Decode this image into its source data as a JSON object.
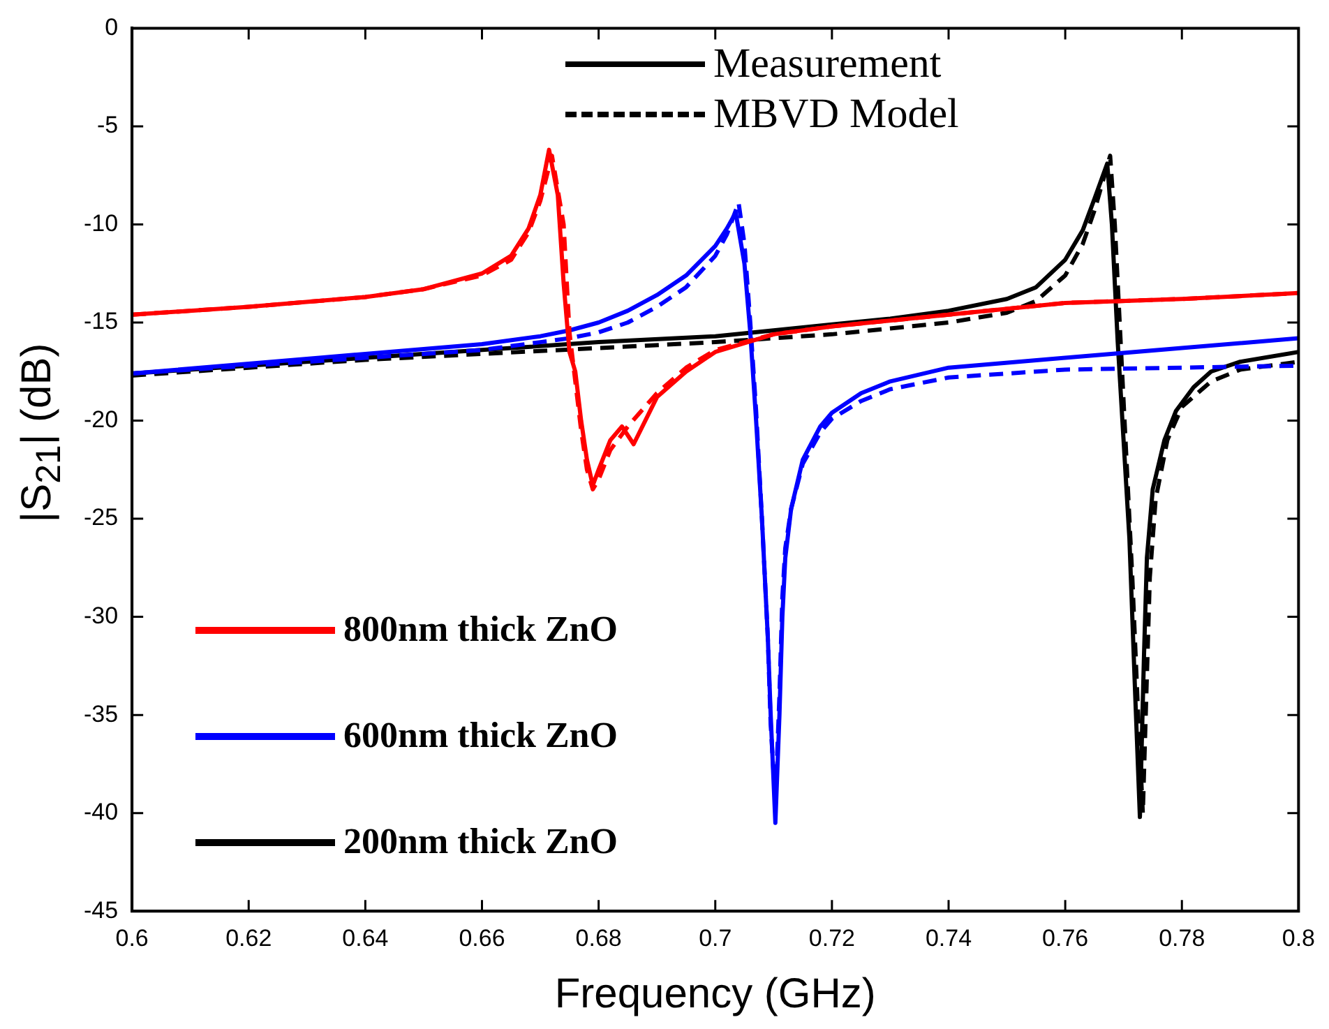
{
  "chart_data": {
    "type": "line",
    "xlabel": "Frequency (GHz)",
    "ylabel": "|S$_{21}$| (dB)",
    "xlim": [
      0.6,
      0.8
    ],
    "xticks": [
      0.6,
      0.62,
      0.64,
      0.66,
      0.68,
      0.7,
      0.72,
      0.74,
      0.76,
      0.78,
      0.8
    ],
    "ylim": [
      -45,
      0
    ],
    "yticks": [
      -45,
      -40,
      -35,
      -30,
      -25,
      -20,
      -15,
      -10,
      -5,
      0
    ],
    "grid": false,
    "legend": "bottom left",
    "marker": "none",
    "annotations": [
      "Measurement",
      "MBVD Model"
    ],
    "series": [
      {
        "name": "800nm thick ZnO",
        "color": "#ff0000",
        "line_style": "solid",
        "x": [
          0.6,
          0.62,
          0.64,
          0.65,
          0.66,
          0.665,
          0.668,
          0.67,
          0.6715,
          0.673,
          0.674,
          0.675,
          0.676,
          0.677,
          0.678,
          0.679,
          0.68,
          0.682,
          0.684,
          0.686,
          0.69,
          0.695,
          0.7,
          0.71,
          0.72,
          0.74,
          0.76,
          0.78,
          0.8
        ],
        "values": [
          -14.6,
          -14.2,
          -13.7,
          -13.3,
          -12.5,
          -11.6,
          -10.2,
          -8.5,
          -6.2,
          -8.5,
          -13,
          -16.5,
          -17.5,
          -20,
          -22,
          -23.3,
          -22.5,
          -21,
          -20.3,
          -21.2,
          -18.8,
          -17.5,
          -16.5,
          -15.6,
          -15.2,
          -14.6,
          -14,
          -13.8,
          -13.5
        ]
      },
      {
        "color": "#ff0000",
        "line_style": "dashed",
        "x": [
          0.6,
          0.62,
          0.64,
          0.65,
          0.66,
          0.665,
          0.668,
          0.67,
          0.672,
          0.674,
          0.675,
          0.676,
          0.677,
          0.678,
          0.679,
          0.68,
          0.682,
          0.685,
          0.69,
          0.695,
          0.7,
          0.71,
          0.72,
          0.74,
          0.76,
          0.78,
          0.8
        ],
        "values": [
          -14.6,
          -14.2,
          -13.7,
          -13.3,
          -12.6,
          -11.8,
          -10.4,
          -8.8,
          -6.5,
          -10,
          -15.5,
          -18,
          -20.5,
          -22.5,
          -23.5,
          -23,
          -21.5,
          -20.3,
          -18.6,
          -17.3,
          -16.4,
          -15.6,
          -15.2,
          -14.6,
          -14,
          -13.8,
          -13.5
        ]
      },
      {
        "name": "600nm thick ZnO",
        "color": "#0000ff",
        "line_style": "solid",
        "x": [
          0.6,
          0.62,
          0.64,
          0.66,
          0.67,
          0.675,
          0.68,
          0.685,
          0.69,
          0.695,
          0.7,
          0.702,
          0.7035,
          0.705,
          0.706,
          0.707,
          0.708,
          0.709,
          0.7095,
          0.7103,
          0.711,
          0.7115,
          0.712,
          0.713,
          0.715,
          0.718,
          0.72,
          0.725,
          0.73,
          0.74,
          0.76,
          0.78,
          0.8
        ],
        "values": [
          -17.6,
          -17.1,
          -16.6,
          -16.1,
          -15.7,
          -15.4,
          -15,
          -14.4,
          -13.6,
          -12.6,
          -11.1,
          -10.2,
          -9.4,
          -12,
          -15.5,
          -20,
          -25,
          -31,
          -35,
          -40.5,
          -35,
          -30,
          -27,
          -24.5,
          -22,
          -20.3,
          -19.6,
          -18.6,
          -18,
          -17.3,
          -16.8,
          -16.3,
          -15.8
        ]
      },
      {
        "color": "#0000ff",
        "line_style": "dashed",
        "x": [
          0.6,
          0.62,
          0.64,
          0.66,
          0.67,
          0.675,
          0.68,
          0.685,
          0.69,
          0.695,
          0.7,
          0.702,
          0.704,
          0.705,
          0.706,
          0.707,
          0.708,
          0.709,
          0.7095,
          0.7103,
          0.711,
          0.7115,
          0.712,
          0.713,
          0.715,
          0.718,
          0.72,
          0.725,
          0.73,
          0.74,
          0.76,
          0.78,
          0.8
        ],
        "values": [
          -17.6,
          -17.2,
          -16.8,
          -16.4,
          -16,
          -15.8,
          -15.5,
          -15,
          -14.2,
          -13.2,
          -11.6,
          -10.5,
          -8.9,
          -11,
          -15,
          -19.5,
          -25,
          -31,
          -35.5,
          -39.5,
          -34,
          -29,
          -26.5,
          -24.5,
          -22.2,
          -20.6,
          -19.9,
          -19,
          -18.4,
          -17.8,
          -17.4,
          -17.3,
          -17.2
        ]
      },
      {
        "name": "200nm thick ZnO",
        "color": "#000000",
        "line_style": "solid",
        "x": [
          0.6,
          0.62,
          0.64,
          0.66,
          0.68,
          0.7,
          0.71,
          0.72,
          0.73,
          0.74,
          0.75,
          0.755,
          0.76,
          0.763,
          0.765,
          0.7672,
          0.768,
          0.769,
          0.77,
          0.771,
          0.772,
          0.7728,
          0.7735,
          0.774,
          0.775,
          0.777,
          0.779,
          0.782,
          0.785,
          0.79,
          0.8
        ],
        "values": [
          -17.6,
          -17.2,
          -16.8,
          -16.4,
          -16,
          -15.7,
          -15.4,
          -15.1,
          -14.8,
          -14.4,
          -13.8,
          -13.2,
          -11.8,
          -10.3,
          -8.7,
          -6.9,
          -10,
          -16,
          -21,
          -26,
          -34,
          -40.2,
          -32,
          -27,
          -23.5,
          -21,
          -19.5,
          -18.3,
          -17.5,
          -17,
          -16.5
        ]
      },
      {
        "color": "#000000",
        "line_style": "dashed",
        "x": [
          0.6,
          0.62,
          0.64,
          0.66,
          0.68,
          0.7,
          0.71,
          0.72,
          0.73,
          0.74,
          0.75,
          0.755,
          0.76,
          0.763,
          0.765,
          0.7677,
          0.7685,
          0.7695,
          0.7705,
          0.7715,
          0.7725,
          0.7733,
          0.774,
          0.7745,
          0.7755,
          0.7775,
          0.78,
          0.785,
          0.79,
          0.8
        ],
        "values": [
          -17.7,
          -17.3,
          -16.9,
          -16.6,
          -16.3,
          -16,
          -15.8,
          -15.6,
          -15.3,
          -15,
          -14.5,
          -13.9,
          -12.6,
          -11,
          -9.3,
          -6.5,
          -10,
          -16,
          -22,
          -28,
          -35,
          -40,
          -33,
          -28,
          -24,
          -21,
          -19.3,
          -18,
          -17.4,
          -17
        ]
      }
    ]
  }
}
